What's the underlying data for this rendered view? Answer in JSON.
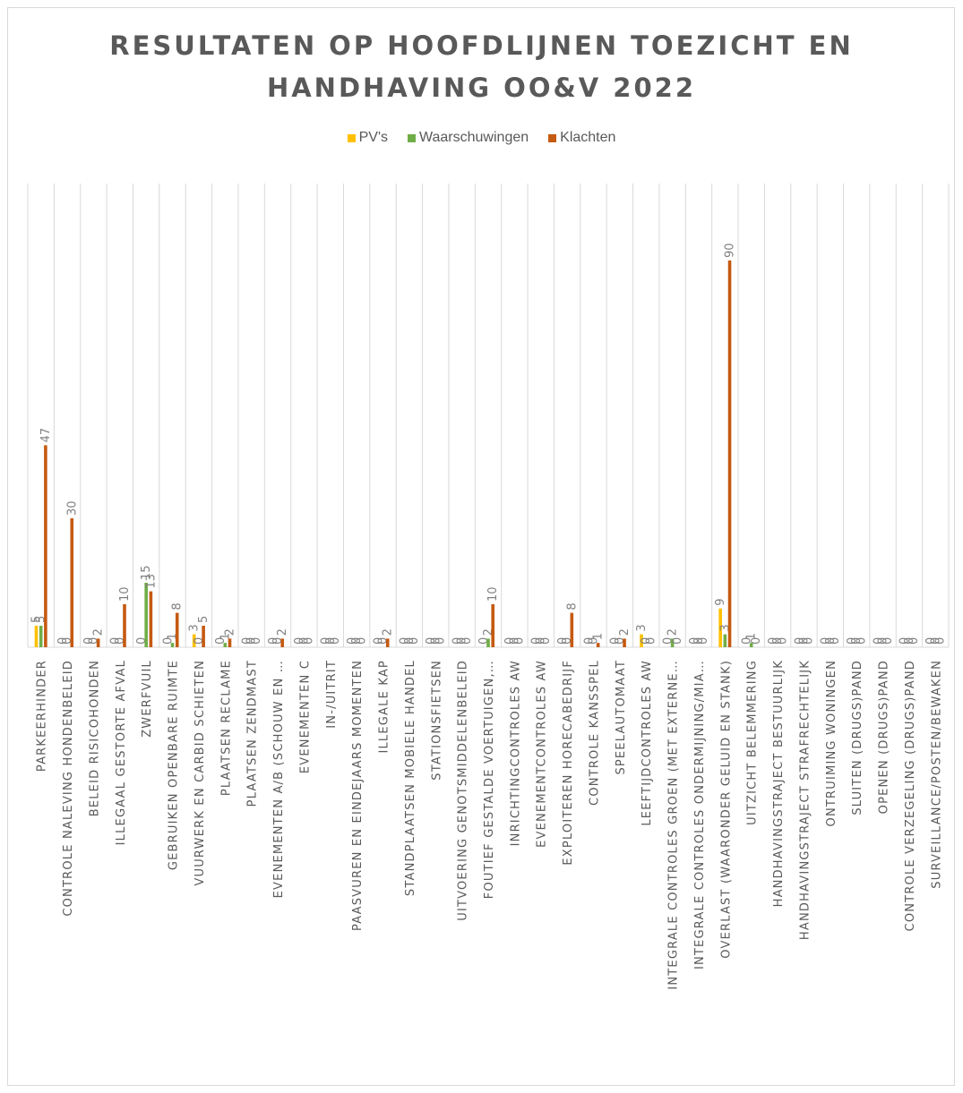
{
  "chart_data": {
    "type": "bar",
    "title": "RESULTATEN OP HOOFDLIJNEN TOEZICHT EN HANDHAVING OO&V 2022",
    "title_lines": [
      "RESULTATEN OP HOOFDLIJNEN TOEZICHT EN",
      "HANDHAVING OO&V 2022"
    ],
    "xlabel": "",
    "ylabel": "",
    "ylim": [
      0,
      95
    ],
    "grid": "vertical category separators",
    "legend_position": "top",
    "categories": [
      "PARKEERHINDER",
      "CONTROLE NALEVING HONDENBELEID",
      "BELEID RISICOHONDEN",
      "ILLEGAAL GESTORTE AFVAL",
      "ZWERFVUIL",
      "GEBRUIKEN OPENBARE RUIMTE",
      "VUURWERK EN CARBID SCHIETEN",
      "PLAATSEN RECLAME",
      "PLAATSEN ZENDMAST",
      "EVENEMENTEN A/B (SCHOUW EN …",
      "EVENEMENTEN C",
      "IN-/UITRIT",
      "PAASVUREN EN EINDEJAARS MOMENTEN",
      "ILLEGALE KAP",
      "STANDPLAATSEN MOBIELE HANDEL",
      "STATIONSFIETSEN",
      "UITVOERING GENOTSMIDDELENBELEID",
      "FOUTIEF GESTALDE VOERTUIGEN,…",
      "INRICHTINGCONTROLES AW",
      "EVENEMENTCONTROLES AW",
      "EXPLOITEREN HORECABEDRIJF",
      "CONTROLE KANSSPEL",
      "SPEELAUTOMAAT",
      "LEEFTIJDCONTROLES AW",
      "INTEGRALE CONTROLES GROEN (MET EXTERNE…",
      "INTEGRALE CONTROLES ONDERMIJNING/MIA…",
      "OVERLAST (WAARONDER GELUID EN STANK)",
      "UITZICHT BELEMMERING",
      "HANDHAVINGSTRAJECT BESTUURLIJK",
      "HANDHAVINGSTRAJECT STRAFRECHTELIJK",
      "ONTRUIMING WONINGEN",
      "SLUITEN (DRUGS)PAND",
      "OPENEN (DRUGS)PAND",
      "CONTROLE VERZEGELING (DRUGS)PAND",
      "SURVEILLANCE/POSTEN/BEWAKEN"
    ],
    "series": [
      {
        "name": "PV's",
        "color": "#ffc000",
        "values": [
          5,
          0,
          0,
          0,
          0,
          0,
          3,
          0,
          0,
          0,
          0,
          0,
          0,
          0,
          0,
          0,
          0,
          0,
          0,
          0,
          0,
          0,
          0,
          3,
          0,
          0,
          9,
          0,
          0,
          0,
          0,
          0,
          0,
          0,
          0
        ]
      },
      {
        "name": "Waarschuwingen",
        "color": "#70ad47",
        "values": [
          5,
          0,
          0,
          0,
          15,
          1,
          0,
          1,
          0,
          0,
          0,
          0,
          0,
          0,
          0,
          0,
          0,
          2,
          0,
          0,
          0,
          0,
          0,
          0,
          2,
          0,
          3,
          1,
          0,
          0,
          0,
          0,
          0,
          0,
          0
        ]
      },
      {
        "name": "Klachten",
        "color": "#c55a11",
        "values": [
          47,
          30,
          2,
          10,
          13,
          8,
          5,
          2,
          0,
          2,
          0,
          0,
          0,
          2,
          0,
          0,
          0,
          10,
          0,
          0,
          8,
          1,
          2,
          0,
          0,
          0,
          90,
          0,
          0,
          0,
          0,
          0,
          0,
          0,
          0
        ]
      }
    ]
  }
}
